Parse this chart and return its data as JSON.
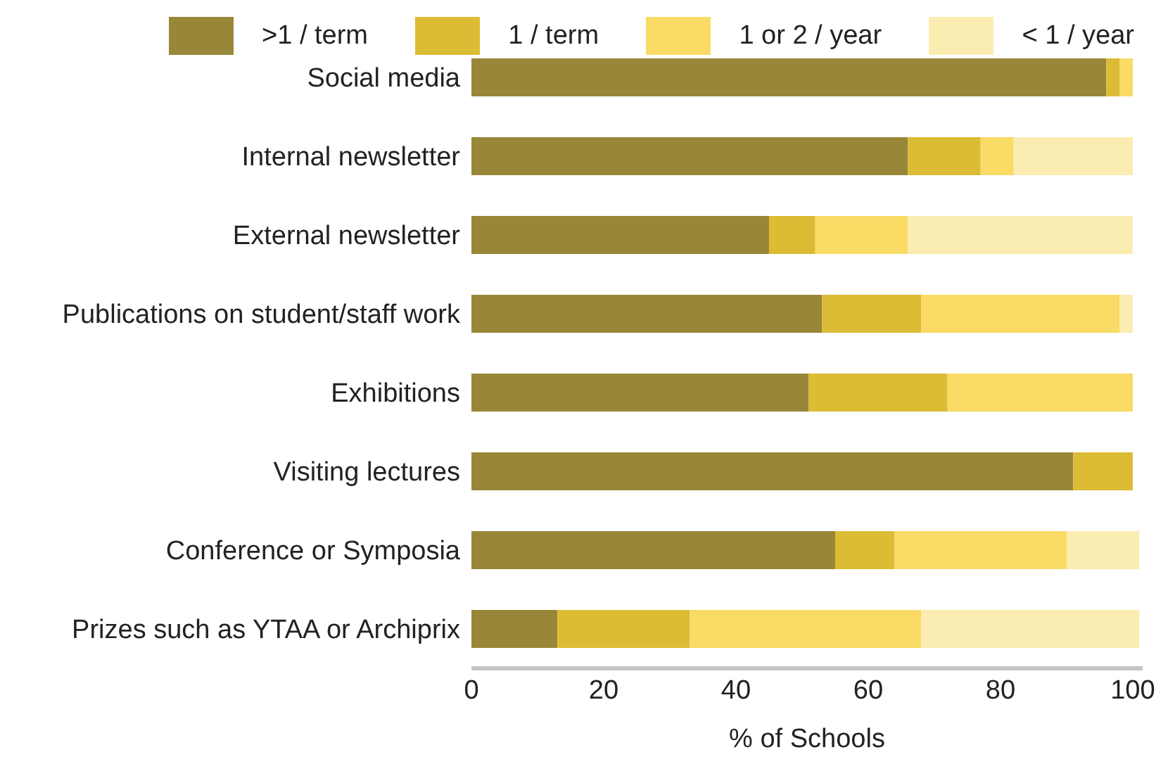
{
  "chart_data": {
    "type": "bar",
    "orientation": "horizontal",
    "stacked": true,
    "xlabel": "% of Schools",
    "categories": [
      "Social media",
      "Internal newsletter",
      "External newsletter",
      "Publications on student/staff work",
      "Exhibitions",
      "Visiting lectures",
      "Conference or Symposia",
      "Prizes such as YTAA or Archiprix"
    ],
    "series": [
      {
        "name": ">1 / term",
        "color": "#998739",
        "values": [
          96,
          66,
          45,
          53,
          51,
          91,
          55,
          13
        ]
      },
      {
        "name": "1 / term",
        "color": "#dcbb35",
        "values": [
          2,
          11,
          7,
          15,
          21,
          9,
          9,
          20
        ]
      },
      {
        "name": "1 or 2 / year",
        "color": "#f9db65",
        "values": [
          2,
          5,
          14,
          30,
          28,
          null,
          26,
          35
        ]
      },
      {
        "name": "< 1 / year",
        "color": "#fbedb1",
        "values": [
          null,
          18,
          34,
          2,
          null,
          null,
          11,
          33
        ]
      }
    ],
    "xlim": [
      0,
      101.5
    ],
    "xticks": [
      0,
      20,
      40,
      60,
      80,
      100
    ],
    "grid": false,
    "legend": "top"
  }
}
